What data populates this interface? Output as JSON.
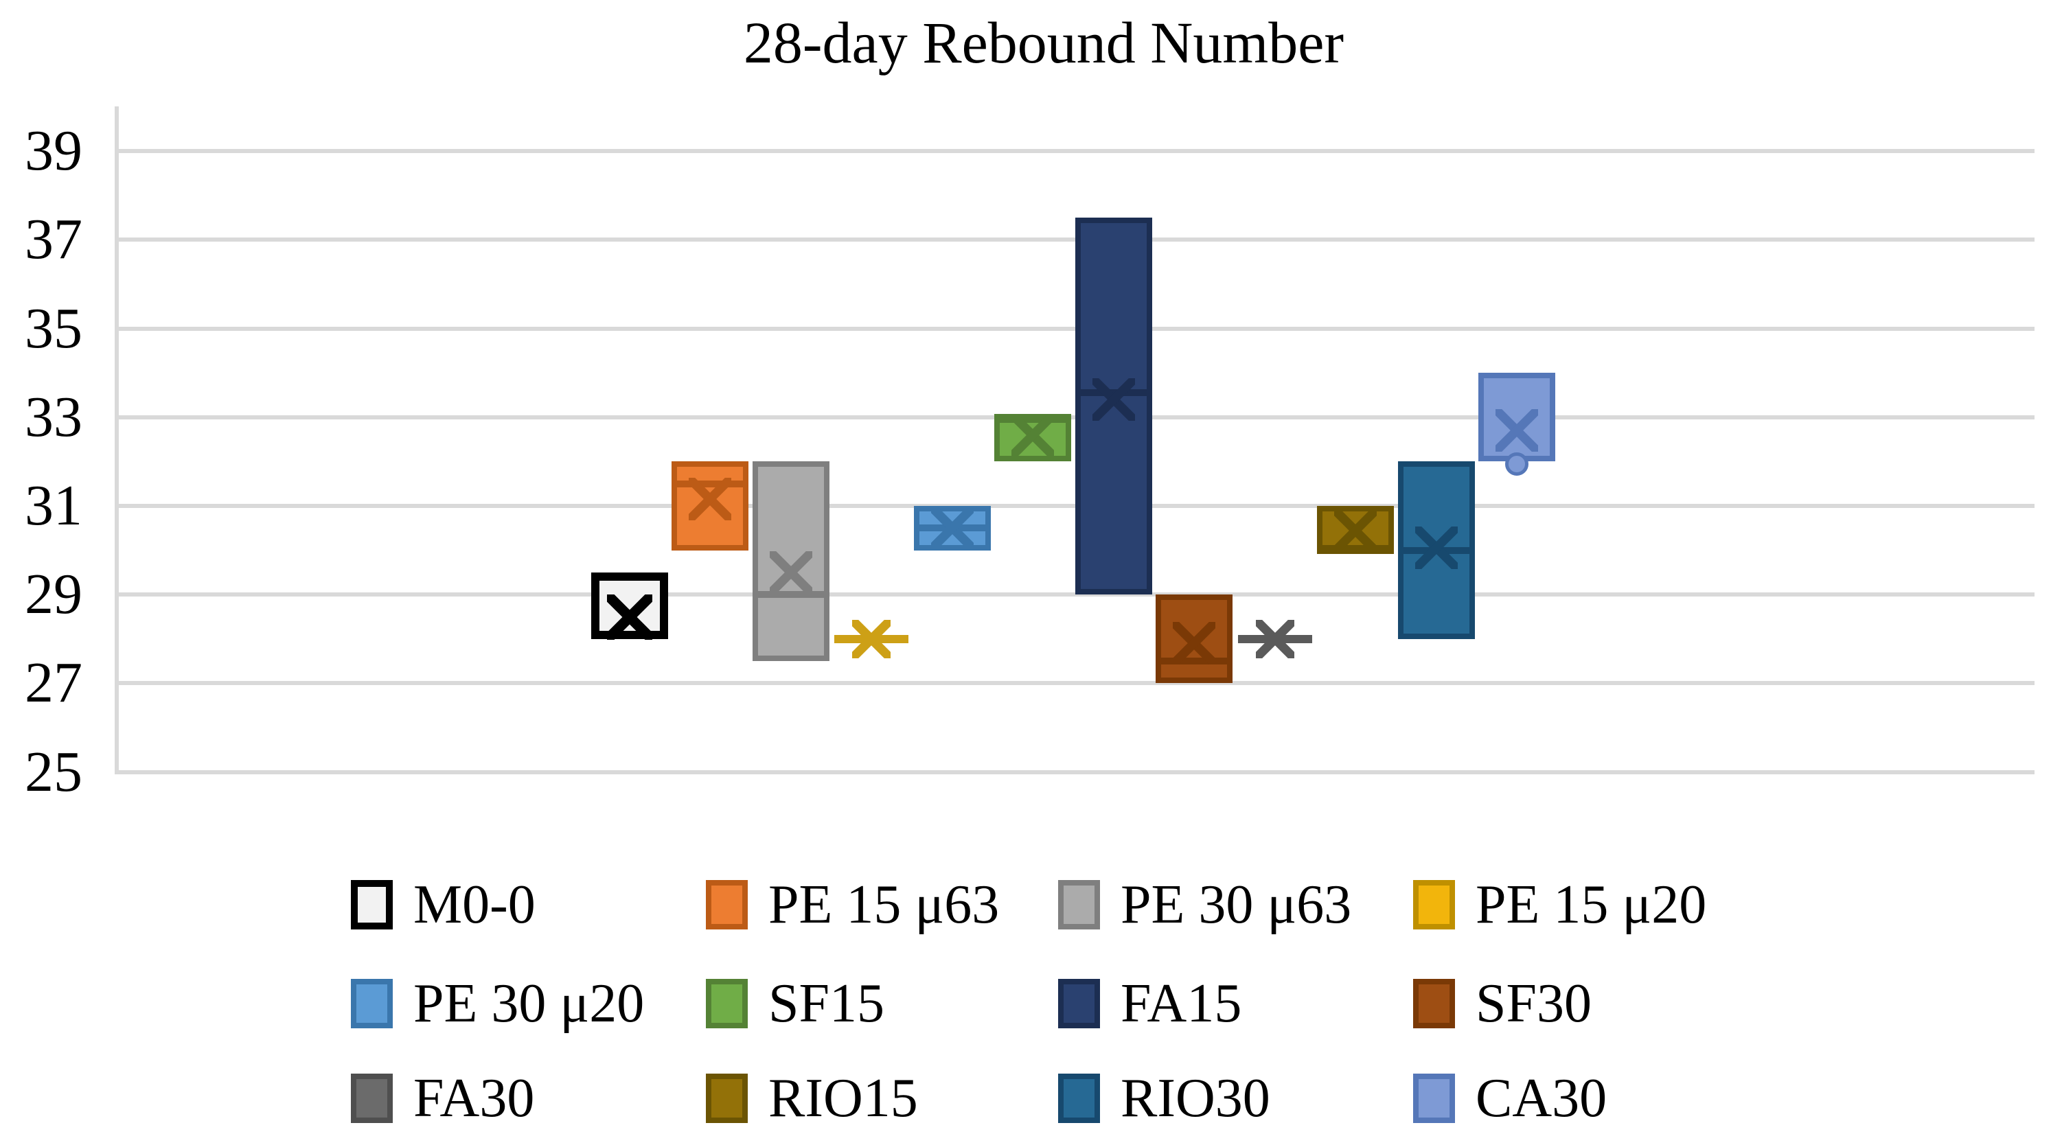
{
  "title": "28-day Rebound Number",
  "colors": {
    "background": "#FFFFFF",
    "gridline": "#D9D9D9",
    "axis": "#D9D9D9",
    "text": "#000000"
  },
  "chart_data": {
    "type": "box",
    "title": "28-day Rebound Number",
    "xlabel": "",
    "ylabel": "",
    "ylim": [
      25,
      40
    ],
    "yticks": [
      39,
      37,
      35,
      33,
      31,
      29,
      27,
      25
    ],
    "grid": true,
    "legend_position": "bottom",
    "series": [
      {
        "label": "M0-0",
        "kind": "box",
        "q1": 28.0,
        "q3": 29.5,
        "median": null,
        "mean": 28.5,
        "fill": "#F2F2F2",
        "border": "#000000",
        "marker": "#000000",
        "border_w": 12
      },
      {
        "label": "PE 15 μ63",
        "kind": "box",
        "q1": 30.0,
        "q3": 32.0,
        "median": 31.5,
        "mean": 31.15,
        "fill": "#ED7D31",
        "border": "#BC5B16",
        "marker": "#BC5B16",
        "border_w": 8
      },
      {
        "label": "PE 30 μ63",
        "kind": "box",
        "q1": 27.5,
        "q3": 32.0,
        "median": 29.0,
        "mean": 29.5,
        "fill": "#ABABAB",
        "border": "#7F7F7F",
        "marker": "#7F7F7F",
        "border_w": 8
      },
      {
        "label": "PE 15 μ20",
        "kind": "marker",
        "value": 28.0,
        "mean": 28.0,
        "fill": "#F2B50C",
        "border": "#BF9000",
        "marker": "#CDA016",
        "border_w": 8
      },
      {
        "label": "PE 30 μ20",
        "kind": "box",
        "q1": 30.0,
        "q3": 31.0,
        "median": 30.5,
        "mean": 30.5,
        "fill": "#5B9BD5",
        "border": "#3A76AC",
        "marker": "#3A76AC",
        "border_w": 8
      },
      {
        "label": "SF15",
        "kind": "box",
        "q1": 32.0,
        "q3": 33.0,
        "median": 33.0,
        "mean": 32.6,
        "fill": "#70AD47",
        "border": "#548235",
        "marker": "#548235",
        "border_w": 8
      },
      {
        "label": "FA15",
        "kind": "box",
        "q1": 29.0,
        "q3": 37.5,
        "median": 33.55,
        "mean": 33.4,
        "fill": "#2A4170",
        "border": "#1C2E52",
        "marker": "#1C2E52",
        "border_w": 8
      },
      {
        "label": "SF30",
        "kind": "box",
        "q1": 27.0,
        "q3": 29.0,
        "median": 27.5,
        "mean": 27.9,
        "fill": "#9E4E13",
        "border": "#7A3906",
        "marker": "#7A3906",
        "border_w": 8
      },
      {
        "label": "FA30",
        "kind": "marker",
        "value": 28.0,
        "mean": 28.0,
        "fill": "#6B6B6B",
        "border": "#4F4F4F",
        "marker": "#5A5A5A",
        "border_w": 8
      },
      {
        "label": "RIO15",
        "kind": "box",
        "q1": 30.0,
        "q3": 31.0,
        "median": 30.0,
        "mean": 30.45,
        "fill": "#937108",
        "border": "#6B5403",
        "marker": "#6B5403",
        "border_w": 8
      },
      {
        "label": "RIO30",
        "kind": "box",
        "q1": 28.0,
        "q3": 32.0,
        "median": 30.0,
        "mean": 30.05,
        "fill": "#266994",
        "border": "#17496E",
        "marker": "#17496E",
        "border_w": 8
      },
      {
        "label": "CA30",
        "kind": "box",
        "q1": 32.0,
        "q3": 34.0,
        "median": null,
        "mean": 32.7,
        "outlier": 31.95,
        "fill": "#7E9AD5",
        "border": "#5577B8",
        "marker": "#5577B8",
        "border_w": 8
      }
    ]
  },
  "legend": {
    "rows": [
      [
        "M0-0",
        "PE 15 μ63",
        "PE 30 μ63",
        "PE 15 μ20"
      ],
      [
        "PE 30 μ20",
        "SF15",
        "FA15",
        "SF30"
      ],
      [
        "FA30",
        "RIO15",
        "RIO30",
        "CA30"
      ]
    ]
  }
}
